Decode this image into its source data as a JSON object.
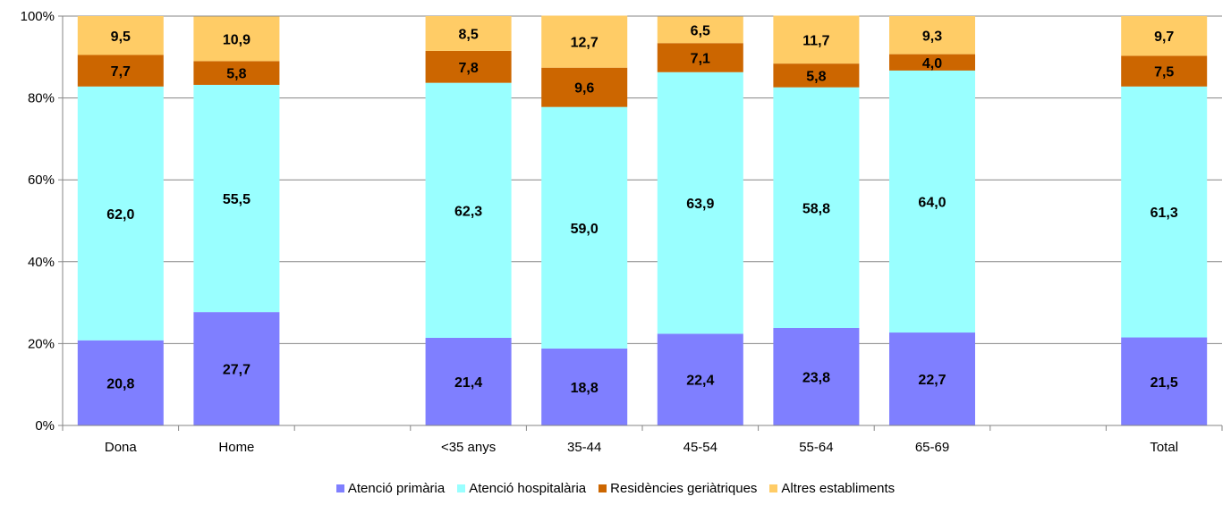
{
  "chart_data": {
    "type": "bar",
    "stacked": true,
    "categories": [
      "Dona",
      "Home",
      "",
      "<35 anys",
      "35-44",
      "45-54",
      "55-64",
      "65-69",
      "",
      "Total"
    ],
    "series": [
      {
        "name": "Atenció primària",
        "color": "#7F7FFF",
        "values": [
          20.8,
          27.7,
          null,
          21.4,
          18.8,
          22.4,
          23.8,
          22.7,
          null,
          21.5
        ]
      },
      {
        "name": "Atenció hospitalària",
        "color": "#99FFFF",
        "values": [
          62.0,
          55.5,
          null,
          62.3,
          59.0,
          63.9,
          58.8,
          64.0,
          null,
          61.3
        ]
      },
      {
        "name": "Residències geriàtriques",
        "color": "#CC6600",
        "values": [
          7.7,
          5.8,
          null,
          7.8,
          9.6,
          7.1,
          5.8,
          4.0,
          null,
          7.5
        ]
      },
      {
        "name": "Altres establiments",
        "color": "#FFCC66",
        "values": [
          9.5,
          10.9,
          null,
          8.5,
          12.7,
          6.5,
          11.7,
          9.3,
          null,
          9.7
        ]
      }
    ],
    "data_labels": [
      [
        "20,8",
        "27,7",
        "",
        "21,4",
        "18,8",
        "22,4",
        "23,8",
        "22,7",
        "",
        "21,5"
      ],
      [
        "62,0",
        "55,5",
        "",
        "62,3",
        "59,0",
        "63,9",
        "58,8",
        "64,0",
        "",
        "61,3"
      ],
      [
        "7,7",
        "5,8",
        "",
        "7,8",
        "9,6",
        "7,1",
        "5,8",
        "4,0",
        "",
        "7,5"
      ],
      [
        "9,5",
        "10,9",
        "",
        "8,5",
        "12,7",
        "6,5",
        "11,7",
        "9,3",
        "",
        "9,7"
      ]
    ],
    "yticks": [
      "0%",
      "20%",
      "40%",
      "60%",
      "80%",
      "100%"
    ],
    "ylim": [
      0,
      100
    ],
    "grid": true,
    "legend_position": "bottom"
  }
}
